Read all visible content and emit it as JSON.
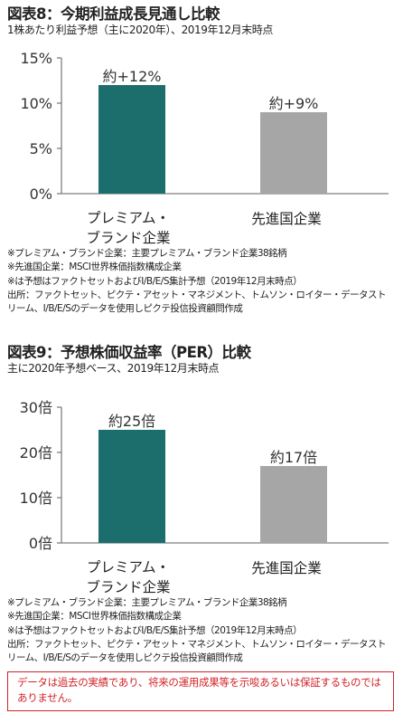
{
  "charts": [
    {
      "title": "図表8：今期利益成長見通し比較",
      "subtitle": "1株あたり利益予想（主に2020年）、2019年12月末時点",
      "notes": [
        "※プレミアム・ブランド企業：主要プレミアム・ブランド企業38銘柄",
        "※先進国企業：MSCI世界株価指数構成企業",
        "※は予想はファクトセットおよびI/B/E/S集計予想（2019年12月末時点）",
        "出所：ファクトセット、ピクテ・アセット・マネジメント、トムソン・ロイター・データスト",
        "リーム、I/B/E/Sのデータを使用しピクテ投信投資顧問作成"
      ]
    },
    {
      "title": "図表9：予想株価収益率（PER）比較",
      "subtitle": "主に2020年予想ベース、2019年12月末時点",
      "notes": [
        "※プレミアム・ブランド企業：主要プレミアム・ブランド企業38銘柄",
        "※先進国企業：MSCI世界株価指数構成企業",
        "※は予想はファクトセットおよびI/B/E/S集計予想（2019年12月末時点）",
        "出所：ファクトセット、ピクテ・アセット・マネジメント、トムソン・ロイター・データスト",
        "リーム、I/B/E/Sのデータを使用しピクテ投信投資顧問作成"
      ]
    }
  ],
  "disclaimer": "データは過去の実績であり、将来の運用成果等を示唆あるいは保証するものではありません。",
  "colors": {
    "premium": "#1b6e6c",
    "developed": "#a6a6a6",
    "axis": "#7f7f7f",
    "disclaimer": "#d2232a"
  },
  "chart_data": [
    {
      "type": "bar",
      "title": "図表8：今期利益成長見通し比較",
      "categories": [
        [
          "プレミアム・",
          "ブランド企業"
        ],
        [
          "先進国企業"
        ]
      ],
      "values": [
        12,
        9
      ],
      "data_labels": [
        "約+12%",
        "約+9%"
      ],
      "yticks": [
        "0%",
        "5%",
        "10%",
        "15%"
      ],
      "ylim": [
        0,
        15
      ],
      "grid": false
    },
    {
      "type": "bar",
      "title": "図表9：予想株価収益率（PER）比較",
      "categories": [
        [
          "プレミアム・",
          "ブランド企業"
        ],
        [
          "先進国企業"
        ]
      ],
      "values": [
        25,
        17
      ],
      "data_labels": [
        "約25倍",
        "約17倍"
      ],
      "yticks": [
        "0倍",
        "10倍",
        "20倍",
        "30倍"
      ],
      "ylim": [
        0,
        30
      ],
      "grid": false
    }
  ]
}
